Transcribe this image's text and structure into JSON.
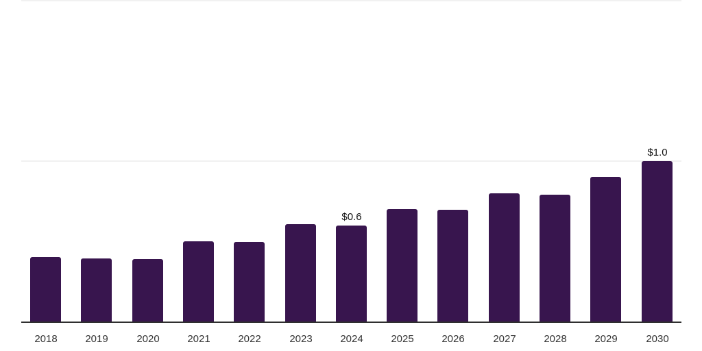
{
  "chart_data": {
    "type": "bar",
    "title": "",
    "xlabel": "",
    "ylabel": "",
    "categories": [
      "2018",
      "2019",
      "2020",
      "2021",
      "2022",
      "2023",
      "2024",
      "2025",
      "2026",
      "2027",
      "2028",
      "2029",
      "2030"
    ],
    "values": [
      0.4,
      0.395,
      0.39,
      0.5,
      0.495,
      0.605,
      0.6,
      0.7,
      0.695,
      0.8,
      0.79,
      0.9,
      1.0
    ],
    "bar_value_labels": [
      "",
      "",
      "",
      "",
      "",
      "",
      "$0.6",
      "",
      "",
      "",
      "",
      "",
      "$1.0"
    ],
    "value_unit_prefix": "$",
    "ylim": [
      0,
      2
    ],
    "gridline_values": [
      1,
      2
    ],
    "grid": "horizontal-light",
    "legend": "none",
    "colors": {
      "bar": "#38154E",
      "gridline": "#f1f1f1",
      "axis_line": "#2f2f2f",
      "tick_label": "#333333",
      "value_label": "#101010",
      "background": "#ffffff"
    }
  }
}
